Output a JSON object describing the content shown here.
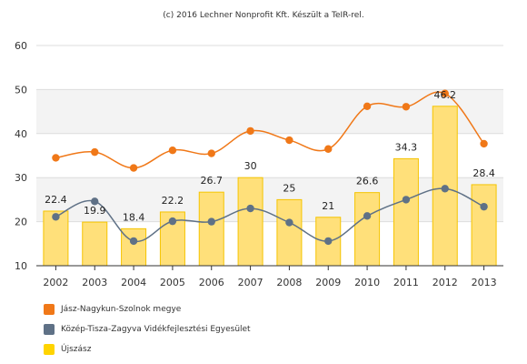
{
  "credit": "(c) 2016 Lechner Nonprofit Kft. Készült a TeIR-rel.",
  "chart_data": {
    "type": "bar+line",
    "categories": [
      "2002",
      "2003",
      "2004",
      "2005",
      "2006",
      "2007",
      "2008",
      "2009",
      "2010",
      "2011",
      "2012",
      "2013"
    ],
    "ylim": [
      10,
      60
    ],
    "yticks": [
      "10",
      "20",
      "30",
      "40",
      "50",
      "60"
    ],
    "grid": "horizontal",
    "legend_placement": "bottom-left",
    "series": [
      {
        "name": "Jász-Nagykun-Szolnok megye",
        "type": "line",
        "color": "#f07818",
        "values": [
          34.5,
          35.8,
          32.2,
          36.2,
          35.5,
          40.6,
          38.5,
          36.5,
          46.2,
          46.1,
          49.1,
          37.7
        ]
      },
      {
        "name": "Közép-Tisza-Zagyva Vidékfejlesztési Egyesület",
        "type": "line",
        "color": "#5f7186",
        "values": [
          21.1,
          24.6,
          15.6,
          20.1,
          20.0,
          23.0,
          19.8,
          15.6,
          21.3,
          25.0,
          27.5,
          23.4
        ]
      },
      {
        "name": "Újszász",
        "type": "bar",
        "color": "#ffe07a",
        "values": [
          22.4,
          19.9,
          18.4,
          22.2,
          26.7,
          30,
          25,
          21,
          26.6,
          34.3,
          46.2,
          28.4
        ],
        "labels": [
          "22.4",
          "19.9",
          "18.4",
          "22.2",
          "26.7",
          "30",
          "25",
          "21",
          "26.6",
          "34.3",
          "46.2",
          "28.4"
        ]
      }
    ]
  }
}
